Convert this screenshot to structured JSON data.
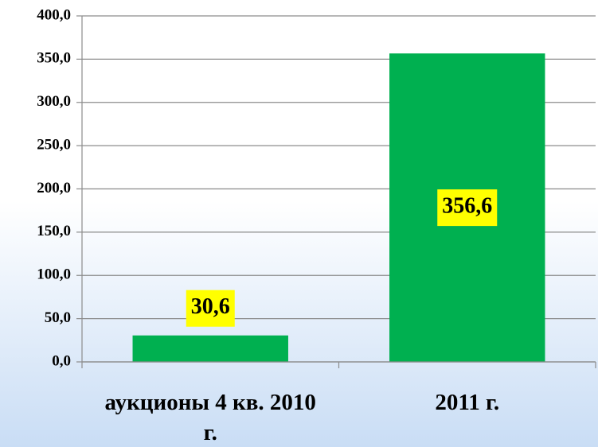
{
  "chart_data": {
    "type": "bar",
    "categories": [
      "аукционы 4 кв. 2010 г.",
      "2011 г."
    ],
    "values": [
      30.6,
      356.6
    ],
    "value_labels": [
      "30,6",
      "356,6"
    ],
    "color": "#00b050",
    "ylim": [
      0,
      400
    ],
    "yticks": [
      {
        "value": 0,
        "label": "0,0"
      },
      {
        "value": 50,
        "label": "50,0"
      },
      {
        "value": 100,
        "label": "100,0"
      },
      {
        "value": 150,
        "label": "150,0"
      },
      {
        "value": 200,
        "label": "200,0"
      },
      {
        "value": 250,
        "label": "250,0"
      },
      {
        "value": 300,
        "label": "300,0"
      },
      {
        "value": 350,
        "label": "350,0"
      },
      {
        "value": 400,
        "label": "400,0"
      }
    ],
    "grid": true
  }
}
